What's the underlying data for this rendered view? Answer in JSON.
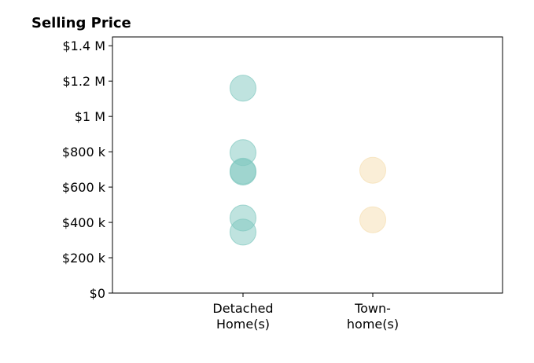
{
  "chart_data": {
    "type": "scatter",
    "title": "Selling Price",
    "xlabel": "",
    "ylabel": "",
    "categories": [
      "Detached\nHome(s)",
      "Town-\nhome(s)"
    ],
    "ylim": [
      0,
      1450000
    ],
    "yticks": [
      0,
      200000,
      400000,
      600000,
      800000,
      1000000,
      1200000,
      1400000
    ],
    "ytick_labels": [
      "$0",
      "$200 k",
      "$400 k",
      "$600 k",
      "$800 k",
      "$1 M",
      "$1.2 M",
      "$1.4 M"
    ],
    "grid": false,
    "series": [
      {
        "category_index": 0,
        "color": "#7fc7bf",
        "values": [
          1160000,
          795000,
          690000,
          685000,
          425000,
          345000
        ]
      },
      {
        "category_index": 1,
        "color": "#f5deb0",
        "values": [
          695000,
          415000
        ]
      }
    ]
  }
}
